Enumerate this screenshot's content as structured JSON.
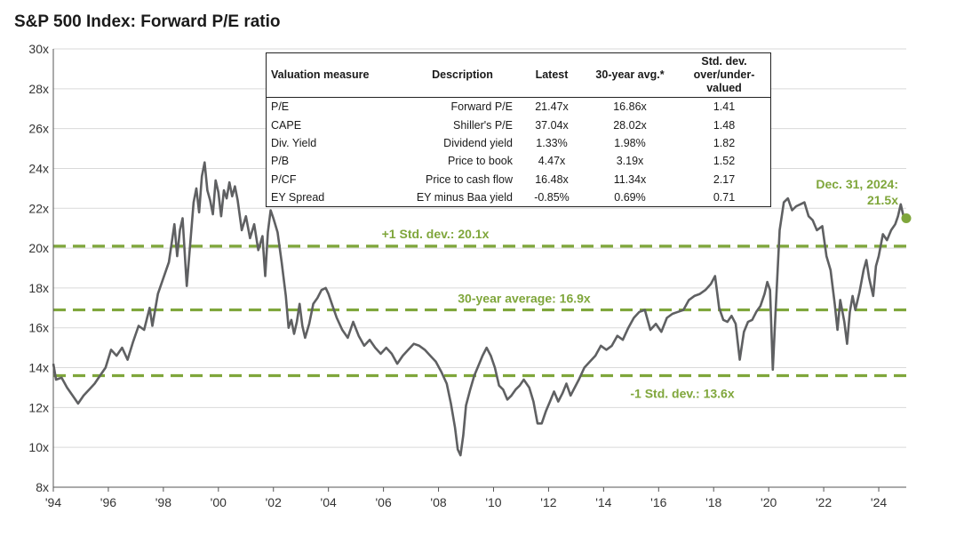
{
  "title": "S&P 500 Index: Forward P/E ratio",
  "colors": {
    "line": "#5f6062",
    "reference": "#7fa63b",
    "grid": "#d9d9d9",
    "endpoint": "#7fa63b"
  },
  "chart_data": {
    "type": "line",
    "title": "S&P 500 Index: Forward P/E ratio",
    "xlabel": "",
    "ylabel": "",
    "xlim": [
      1994,
      2025
    ],
    "ylim": [
      8,
      30
    ],
    "grid": true,
    "y_ticks": [
      "8x",
      "10x",
      "12x",
      "14x",
      "16x",
      "18x",
      "20x",
      "22x",
      "24x",
      "26x",
      "28x",
      "30x"
    ],
    "x_ticks": [
      "'94",
      "'96",
      "'98",
      "'00",
      "'02",
      "'04",
      "'06",
      "'08",
      "'10",
      "'12",
      "'14",
      "'16",
      "'18",
      "'20",
      "'22",
      "'24"
    ],
    "series": [
      {
        "values": [
          [
            1994.0,
            14.2
          ],
          [
            1994.1,
            13.4
          ],
          [
            1994.3,
            13.5
          ],
          [
            1994.5,
            13.0
          ],
          [
            1994.7,
            12.6
          ],
          [
            1994.9,
            12.2
          ],
          [
            1995.1,
            12.6
          ],
          [
            1995.3,
            12.9
          ],
          [
            1995.5,
            13.2
          ],
          [
            1995.7,
            13.6
          ],
          [
            1995.9,
            14.0
          ],
          [
            1996.1,
            14.9
          ],
          [
            1996.3,
            14.6
          ],
          [
            1996.5,
            15.0
          ],
          [
            1996.7,
            14.4
          ],
          [
            1996.9,
            15.3
          ],
          [
            1997.1,
            16.1
          ],
          [
            1997.3,
            15.9
          ],
          [
            1997.5,
            17.0
          ],
          [
            1997.6,
            16.1
          ],
          [
            1997.8,
            17.7
          ],
          [
            1998.0,
            18.5
          ],
          [
            1998.2,
            19.3
          ],
          [
            1998.4,
            21.2
          ],
          [
            1998.5,
            19.6
          ],
          [
            1998.6,
            20.9
          ],
          [
            1998.7,
            21.5
          ],
          [
            1998.85,
            18.1
          ],
          [
            1999.0,
            20.6
          ],
          [
            1999.1,
            22.3
          ],
          [
            1999.2,
            23.0
          ],
          [
            1999.3,
            21.8
          ],
          [
            1999.4,
            23.6
          ],
          [
            1999.5,
            24.3
          ],
          [
            1999.6,
            22.9
          ],
          [
            1999.7,
            22.4
          ],
          [
            1999.8,
            21.7
          ],
          [
            1999.9,
            23.4
          ],
          [
            2000.0,
            22.8
          ],
          [
            2000.1,
            21.6
          ],
          [
            2000.2,
            22.9
          ],
          [
            2000.3,
            22.5
          ],
          [
            2000.4,
            23.3
          ],
          [
            2000.5,
            22.6
          ],
          [
            2000.6,
            23.1
          ],
          [
            2000.7,
            22.4
          ],
          [
            2000.85,
            20.9
          ],
          [
            2001.0,
            21.6
          ],
          [
            2001.15,
            20.5
          ],
          [
            2001.3,
            21.2
          ],
          [
            2001.45,
            19.9
          ],
          [
            2001.6,
            20.6
          ],
          [
            2001.7,
            18.6
          ],
          [
            2001.8,
            20.8
          ],
          [
            2001.9,
            21.9
          ],
          [
            2002.0,
            21.5
          ],
          [
            2002.15,
            20.8
          ],
          [
            2002.3,
            19.3
          ],
          [
            2002.45,
            17.6
          ],
          [
            2002.55,
            16.0
          ],
          [
            2002.65,
            16.4
          ],
          [
            2002.75,
            15.7
          ],
          [
            2002.85,
            16.3
          ],
          [
            2002.95,
            17.2
          ],
          [
            2003.05,
            16.1
          ],
          [
            2003.15,
            15.5
          ],
          [
            2003.3,
            16.2
          ],
          [
            2003.45,
            17.2
          ],
          [
            2003.6,
            17.5
          ],
          [
            2003.75,
            17.9
          ],
          [
            2003.9,
            18.0
          ],
          [
            2004.0,
            17.7
          ],
          [
            2004.15,
            17.1
          ],
          [
            2004.3,
            16.5
          ],
          [
            2004.5,
            15.9
          ],
          [
            2004.7,
            15.5
          ],
          [
            2004.9,
            16.3
          ],
          [
            2005.1,
            15.6
          ],
          [
            2005.3,
            15.1
          ],
          [
            2005.5,
            15.4
          ],
          [
            2005.7,
            15.0
          ],
          [
            2005.9,
            14.7
          ],
          [
            2006.1,
            15.0
          ],
          [
            2006.3,
            14.7
          ],
          [
            2006.5,
            14.2
          ],
          [
            2006.7,
            14.6
          ],
          [
            2006.9,
            14.9
          ],
          [
            2007.1,
            15.2
          ],
          [
            2007.3,
            15.1
          ],
          [
            2007.5,
            14.9
          ],
          [
            2007.7,
            14.6
          ],
          [
            2007.9,
            14.3
          ],
          [
            2008.1,
            13.8
          ],
          [
            2008.3,
            13.2
          ],
          [
            2008.45,
            12.2
          ],
          [
            2008.6,
            11.0
          ],
          [
            2008.7,
            9.9
          ],
          [
            2008.8,
            9.6
          ],
          [
            2008.9,
            10.6
          ],
          [
            2009.0,
            12.1
          ],
          [
            2009.15,
            12.9
          ],
          [
            2009.3,
            13.6
          ],
          [
            2009.45,
            14.1
          ],
          [
            2009.6,
            14.6
          ],
          [
            2009.75,
            15.0
          ],
          [
            2009.9,
            14.6
          ],
          [
            2010.05,
            14.0
          ],
          [
            2010.2,
            13.1
          ],
          [
            2010.35,
            12.9
          ],
          [
            2010.5,
            12.4
          ],
          [
            2010.65,
            12.6
          ],
          [
            2010.8,
            12.9
          ],
          [
            2010.95,
            13.1
          ],
          [
            2011.1,
            13.4
          ],
          [
            2011.3,
            13.0
          ],
          [
            2011.45,
            12.3
          ],
          [
            2011.6,
            11.2
          ],
          [
            2011.75,
            11.2
          ],
          [
            2011.9,
            11.8
          ],
          [
            2012.05,
            12.3
          ],
          [
            2012.2,
            12.8
          ],
          [
            2012.35,
            12.3
          ],
          [
            2012.5,
            12.7
          ],
          [
            2012.65,
            13.2
          ],
          [
            2012.8,
            12.6
          ],
          [
            2012.95,
            13.0
          ],
          [
            2013.1,
            13.4
          ],
          [
            2013.3,
            14.0
          ],
          [
            2013.5,
            14.3
          ],
          [
            2013.7,
            14.6
          ],
          [
            2013.9,
            15.1
          ],
          [
            2014.1,
            14.9
          ],
          [
            2014.3,
            15.1
          ],
          [
            2014.5,
            15.6
          ],
          [
            2014.7,
            15.4
          ],
          [
            2014.9,
            16.0
          ],
          [
            2015.1,
            16.5
          ],
          [
            2015.3,
            16.8
          ],
          [
            2015.5,
            16.9
          ],
          [
            2015.7,
            15.9
          ],
          [
            2015.9,
            16.2
          ],
          [
            2016.1,
            15.8
          ],
          [
            2016.3,
            16.5
          ],
          [
            2016.5,
            16.7
          ],
          [
            2016.7,
            16.8
          ],
          [
            2016.9,
            16.9
          ],
          [
            2017.1,
            17.4
          ],
          [
            2017.3,
            17.6
          ],
          [
            2017.5,
            17.7
          ],
          [
            2017.7,
            17.9
          ],
          [
            2017.9,
            18.2
          ],
          [
            2018.05,
            18.6
          ],
          [
            2018.2,
            17.0
          ],
          [
            2018.35,
            16.4
          ],
          [
            2018.5,
            16.3
          ],
          [
            2018.65,
            16.6
          ],
          [
            2018.8,
            16.2
          ],
          [
            2018.95,
            14.4
          ],
          [
            2019.1,
            15.8
          ],
          [
            2019.25,
            16.3
          ],
          [
            2019.4,
            16.4
          ],
          [
            2019.55,
            16.8
          ],
          [
            2019.7,
            17.1
          ],
          [
            2019.85,
            17.7
          ],
          [
            2019.95,
            18.3
          ],
          [
            2020.05,
            17.9
          ],
          [
            2020.15,
            13.9
          ],
          [
            2020.25,
            16.8
          ],
          [
            2020.4,
            20.9
          ],
          [
            2020.55,
            22.3
          ],
          [
            2020.7,
            22.5
          ],
          [
            2020.85,
            21.9
          ],
          [
            2021.0,
            22.1
          ],
          [
            2021.15,
            22.2
          ],
          [
            2021.3,
            22.3
          ],
          [
            2021.45,
            21.6
          ],
          [
            2021.6,
            21.4
          ],
          [
            2021.75,
            20.9
          ],
          [
            2021.95,
            21.1
          ],
          [
            2022.1,
            19.6
          ],
          [
            2022.25,
            18.9
          ],
          [
            2022.4,
            17.2
          ],
          [
            2022.5,
            15.9
          ],
          [
            2022.6,
            17.4
          ],
          [
            2022.75,
            16.3
          ],
          [
            2022.85,
            15.2
          ],
          [
            2022.95,
            16.8
          ],
          [
            2023.05,
            17.6
          ],
          [
            2023.15,
            16.9
          ],
          [
            2023.3,
            17.8
          ],
          [
            2023.45,
            18.9
          ],
          [
            2023.55,
            19.4
          ],
          [
            2023.65,
            18.5
          ],
          [
            2023.8,
            17.6
          ],
          [
            2023.9,
            19.1
          ],
          [
            2024.0,
            19.6
          ],
          [
            2024.15,
            20.7
          ],
          [
            2024.3,
            20.4
          ],
          [
            2024.45,
            20.9
          ],
          [
            2024.6,
            21.2
          ],
          [
            2024.7,
            21.6
          ],
          [
            2024.8,
            22.2
          ],
          [
            2024.9,
            21.6
          ],
          [
            2025.0,
            21.5
          ]
        ]
      }
    ],
    "reference_lines": [
      {
        "value": 20.1,
        "label": "+1 Std. dev.: 20.1x"
      },
      {
        "value": 16.9,
        "label": "30-year average: 16.9x"
      },
      {
        "value": 13.6,
        "label": "-1 Std. dev.: 13.6x"
      }
    ],
    "endpoint": {
      "x": 2025.0,
      "y": 21.5,
      "label_line1": "Dec. 31, 2024:",
      "label_line2": "21.5x"
    }
  },
  "valuation_table": {
    "headers": {
      "col0": "Valuation measure",
      "col1": "Description",
      "col2": "Latest",
      "col3": "30-year avg.*",
      "col4_line1": "Std. dev.",
      "col4_line2": "over/under-valued"
    },
    "rows": [
      {
        "measure": "P/E",
        "description": "Forward P/E",
        "latest": "21.47x",
        "avg": "16.86x",
        "stddev": "1.41"
      },
      {
        "measure": "CAPE",
        "description": "Shiller's P/E",
        "latest": "37.04x",
        "avg": "28.02x",
        "stddev": "1.48"
      },
      {
        "measure": "Div. Yield",
        "description": "Dividend yield",
        "latest": "1.33%",
        "avg": "1.98%",
        "stddev": "1.82"
      },
      {
        "measure": "P/B",
        "description": "Price to book",
        "latest": "4.47x",
        "avg": "3.19x",
        "stddev": "1.52"
      },
      {
        "measure": "P/CF",
        "description": "Price to cash flow",
        "latest": "16.48x",
        "avg": "11.34x",
        "stddev": "2.17"
      },
      {
        "measure": "EY Spread",
        "description": "EY minus Baa yield",
        "latest": "-0.85%",
        "avg": "0.69%",
        "stddev": "0.71"
      }
    ]
  }
}
